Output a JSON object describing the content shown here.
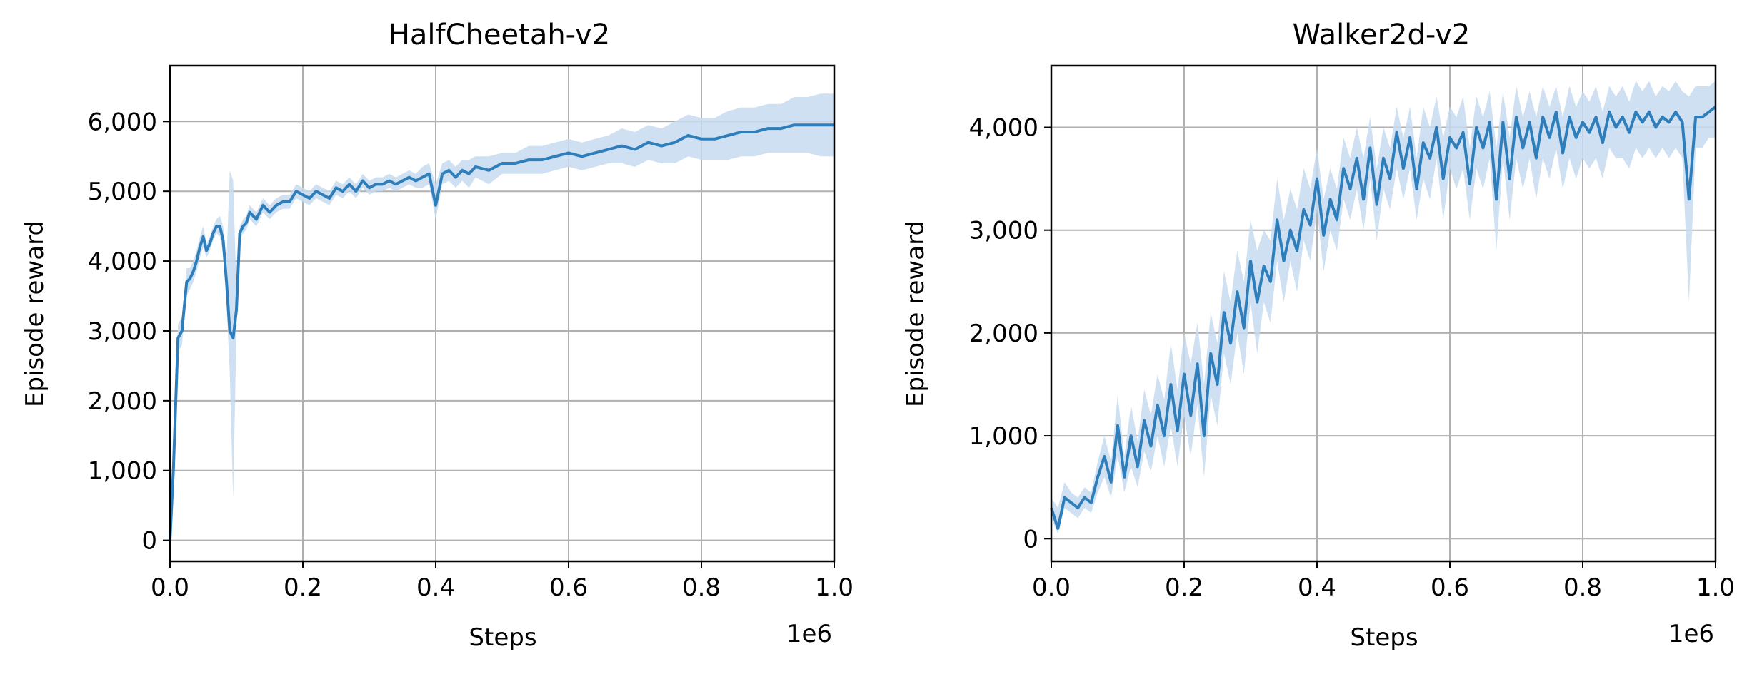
{
  "colors": {
    "line": "#2f7ebc",
    "band": "#c6dbef",
    "grid": "#b0b0b0",
    "axis": "#000000"
  },
  "chart_data": [
    {
      "type": "line",
      "title": "HalfCheetah-v2",
      "xlabel": "Steps",
      "ylabel": "Episode reward",
      "x_offset_text": "1e6",
      "xlim": [
        0,
        1
      ],
      "ylim": [
        -300,
        6800
      ],
      "grid": true,
      "x_ticks": [
        0.0,
        0.2,
        0.4,
        0.6,
        0.8,
        1.0
      ],
      "x_tick_labels": [
        "0.0",
        "0.2",
        "0.4",
        "0.6",
        "0.8",
        "1.0"
      ],
      "y_ticks": [
        0,
        1000,
        2000,
        3000,
        4000,
        5000,
        6000
      ],
      "y_tick_labels": [
        "0",
        "1,000",
        "2,000",
        "3,000",
        "4,000",
        "5,000",
        "6,000"
      ],
      "series": [
        {
          "x": [
            0.0,
            0.005,
            0.012,
            0.018,
            0.025,
            0.03,
            0.035,
            0.04,
            0.045,
            0.05,
            0.055,
            0.06,
            0.065,
            0.07,
            0.075,
            0.08,
            0.085,
            0.09,
            0.095,
            0.1,
            0.105,
            0.11,
            0.115,
            0.12,
            0.13,
            0.14,
            0.15,
            0.16,
            0.17,
            0.18,
            0.19,
            0.2,
            0.21,
            0.22,
            0.23,
            0.24,
            0.25,
            0.26,
            0.27,
            0.28,
            0.29,
            0.3,
            0.31,
            0.32,
            0.33,
            0.34,
            0.35,
            0.36,
            0.37,
            0.38,
            0.39,
            0.4,
            0.41,
            0.42,
            0.43,
            0.44,
            0.45,
            0.46,
            0.48,
            0.5,
            0.52,
            0.54,
            0.56,
            0.58,
            0.6,
            0.62,
            0.64,
            0.66,
            0.68,
            0.7,
            0.72,
            0.74,
            0.76,
            0.78,
            0.8,
            0.82,
            0.84,
            0.86,
            0.88,
            0.9,
            0.92,
            0.94,
            0.96,
            0.98,
            1.0
          ],
          "y": [
            0,
            1000,
            2900,
            3000,
            3700,
            3750,
            3850,
            4000,
            4200,
            4350,
            4150,
            4250,
            4400,
            4500,
            4500,
            4300,
            3700,
            3000,
            2900,
            3300,
            4400,
            4500,
            4550,
            4700,
            4600,
            4800,
            4700,
            4800,
            4850,
            4850,
            5000,
            4950,
            4900,
            5000,
            4950,
            4900,
            5050,
            5000,
            5100,
            5000,
            5150,
            5050,
            5100,
            5100,
            5150,
            5100,
            5150,
            5200,
            5150,
            5200,
            5250,
            4800,
            5250,
            5300,
            5200,
            5300,
            5250,
            5350,
            5300,
            5400,
            5400,
            5450,
            5450,
            5500,
            5550,
            5500,
            5550,
            5600,
            5650,
            5600,
            5700,
            5650,
            5700,
            5800,
            5750,
            5750,
            5800,
            5850,
            5850,
            5900,
            5900,
            5950,
            5950,
            5950,
            5950
          ],
          "y_lower": [
            0,
            800,
            2700,
            2800,
            3500,
            3600,
            3700,
            3850,
            4050,
            4200,
            4050,
            4150,
            4300,
            4400,
            4350,
            4100,
            3400,
            2400,
            600,
            3000,
            4300,
            4400,
            4450,
            4600,
            4500,
            4700,
            4600,
            4700,
            4750,
            4750,
            4900,
            4850,
            4800,
            4900,
            4850,
            4800,
            4950,
            4900,
            5000,
            4900,
            5050,
            4950,
            5000,
            5000,
            5050,
            5000,
            5050,
            5100,
            5050,
            5050,
            5100,
            4600,
            5100,
            5150,
            5050,
            5150,
            5050,
            5200,
            5100,
            5250,
            5250,
            5250,
            5250,
            5300,
            5350,
            5300,
            5350,
            5400,
            5400,
            5350,
            5450,
            5400,
            5400,
            5500,
            5450,
            5450,
            5450,
            5500,
            5500,
            5550,
            5550,
            5550,
            5550,
            5500,
            5500
          ],
          "y_upper": [
            0,
            1200,
            3100,
            3200,
            3900,
            3900,
            4000,
            4150,
            4350,
            4500,
            4250,
            4350,
            4500,
            4600,
            4650,
            4500,
            4000,
            5300,
            5150,
            3600,
            4500,
            4600,
            4650,
            4800,
            4700,
            4900,
            4800,
            4900,
            4950,
            4950,
            5100,
            5050,
            5000,
            5100,
            5050,
            5000,
            5150,
            5100,
            5200,
            5100,
            5250,
            5150,
            5200,
            5200,
            5250,
            5200,
            5250,
            5300,
            5250,
            5350,
            5400,
            5100,
            5400,
            5450,
            5350,
            5450,
            5450,
            5500,
            5500,
            5550,
            5550,
            5650,
            5650,
            5700,
            5750,
            5700,
            5750,
            5800,
            5900,
            5850,
            5950,
            5900,
            6000,
            6100,
            6050,
            6050,
            6150,
            6200,
            6200,
            6250,
            6250,
            6350,
            6350,
            6400,
            6400
          ]
        }
      ]
    },
    {
      "type": "line",
      "title": "Walker2d-v2",
      "xlabel": "Steps",
      "ylabel": "Episode reward",
      "x_offset_text": "1e6",
      "xlim": [
        0,
        1
      ],
      "ylim": [
        -220,
        4600
      ],
      "grid": true,
      "x_ticks": [
        0.0,
        0.2,
        0.4,
        0.6,
        0.8,
        1.0
      ],
      "x_tick_labels": [
        "0.0",
        "0.2",
        "0.4",
        "0.6",
        "0.8",
        "1.0"
      ],
      "y_ticks": [
        0,
        1000,
        2000,
        3000,
        4000
      ],
      "y_tick_labels": [
        "0",
        "1,000",
        "2,000",
        "3,000",
        "4,000"
      ],
      "series": [
        {
          "x": [
            0.0,
            0.01,
            0.02,
            0.03,
            0.04,
            0.05,
            0.06,
            0.07,
            0.08,
            0.09,
            0.1,
            0.11,
            0.12,
            0.13,
            0.14,
            0.15,
            0.16,
            0.17,
            0.18,
            0.19,
            0.2,
            0.21,
            0.22,
            0.23,
            0.24,
            0.25,
            0.26,
            0.27,
            0.28,
            0.29,
            0.3,
            0.31,
            0.32,
            0.33,
            0.34,
            0.35,
            0.36,
            0.37,
            0.38,
            0.39,
            0.4,
            0.41,
            0.42,
            0.43,
            0.44,
            0.45,
            0.46,
            0.47,
            0.48,
            0.49,
            0.5,
            0.51,
            0.52,
            0.53,
            0.54,
            0.55,
            0.56,
            0.57,
            0.58,
            0.59,
            0.6,
            0.61,
            0.62,
            0.63,
            0.64,
            0.65,
            0.66,
            0.67,
            0.68,
            0.69,
            0.7,
            0.71,
            0.72,
            0.73,
            0.74,
            0.75,
            0.76,
            0.77,
            0.78,
            0.79,
            0.8,
            0.81,
            0.82,
            0.83,
            0.84,
            0.85,
            0.86,
            0.87,
            0.88,
            0.89,
            0.9,
            0.91,
            0.92,
            0.93,
            0.94,
            0.95,
            0.96,
            0.97,
            0.98,
            0.99,
            1.0
          ],
          "y": [
            300,
            100,
            400,
            350,
            300,
            400,
            350,
            600,
            800,
            550,
            1100,
            600,
            1000,
            700,
            1150,
            900,
            1300,
            1000,
            1500,
            1050,
            1600,
            1200,
            1700,
            1000,
            1800,
            1500,
            2200,
            1900,
            2400,
            2050,
            2700,
            2300,
            2650,
            2500,
            3100,
            2700,
            3000,
            2800,
            3200,
            3050,
            3500,
            2950,
            3300,
            3100,
            3600,
            3400,
            3700,
            3300,
            3800,
            3250,
            3700,
            3500,
            3950,
            3600,
            3900,
            3400,
            3850,
            3700,
            4000,
            3500,
            3900,
            3800,
            3950,
            3450,
            4000,
            3800,
            4050,
            3300,
            4050,
            3500,
            4100,
            3800,
            4050,
            3700,
            4100,
            3900,
            4150,
            3750,
            4100,
            3900,
            4050,
            3950,
            4100,
            3850,
            4150,
            4000,
            4100,
            3950,
            4150,
            4050,
            4150,
            4000,
            4100,
            4050,
            4150,
            4050,
            3300,
            4100,
            4100,
            4150,
            4200
          ],
          "y_lower": [
            200,
            50,
            300,
            250,
            200,
            300,
            250,
            450,
            600,
            400,
            800,
            450,
            700,
            500,
            850,
            650,
            1000,
            700,
            1100,
            700,
            1200,
            800,
            1300,
            600,
            1400,
            1100,
            1800,
            1500,
            2000,
            1600,
            2300,
            1800,
            2300,
            2100,
            2700,
            2300,
            2700,
            2400,
            2900,
            2700,
            3200,
            2600,
            3000,
            2800,
            3300,
            3100,
            3400,
            3000,
            3500,
            2900,
            3400,
            3200,
            3600,
            3300,
            3600,
            3100,
            3500,
            3300,
            3700,
            3100,
            3600,
            3400,
            3600,
            3100,
            3600,
            3400,
            3700,
            2800,
            3700,
            3100,
            3700,
            3400,
            3700,
            3300,
            3700,
            3500,
            3800,
            3400,
            3700,
            3500,
            3700,
            3600,
            3700,
            3500,
            3800,
            3700,
            3700,
            3600,
            3800,
            3700,
            3800,
            3700,
            3800,
            3700,
            3800,
            3700,
            2300,
            3800,
            3800,
            3900,
            3900
          ],
          "y_upper": [
            400,
            300,
            550,
            450,
            400,
            500,
            450,
            750,
            1000,
            750,
            1400,
            800,
            1300,
            950,
            1450,
            1200,
            1600,
            1350,
            1900,
            1450,
            2000,
            1700,
            2100,
            1500,
            2200,
            1900,
            2600,
            2300,
            2800,
            2500,
            3100,
            2800,
            3000,
            2900,
            3500,
            3100,
            3400,
            3200,
            3600,
            3400,
            3800,
            3300,
            3600,
            3400,
            3900,
            3700,
            4000,
            3700,
            4100,
            3600,
            4000,
            3800,
            4200,
            3900,
            4200,
            3700,
            4200,
            4000,
            4300,
            3900,
            4200,
            4100,
            4300,
            3800,
            4300,
            4100,
            4350,
            3800,
            4350,
            3900,
            4400,
            4100,
            4350,
            4100,
            4400,
            4200,
            4400,
            4100,
            4400,
            4200,
            4350,
            4250,
            4400,
            4150,
            4400,
            4300,
            4400,
            4250,
            4450,
            4350,
            4450,
            4300,
            4400,
            4350,
            4450,
            4350,
            4300,
            4400,
            4400,
            4400,
            4450
          ]
        }
      ]
    }
  ]
}
